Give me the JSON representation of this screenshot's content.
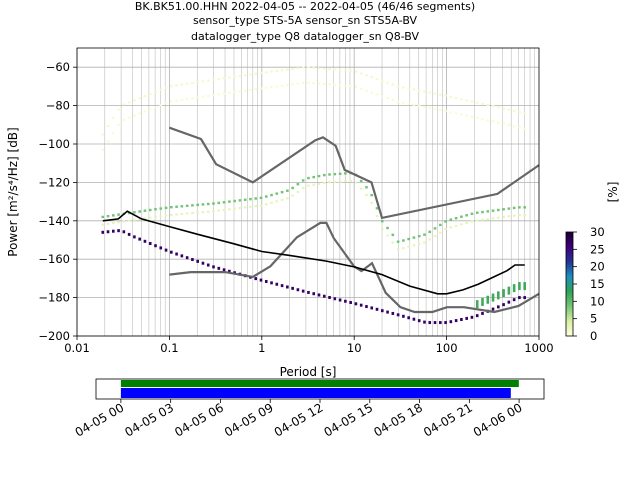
{
  "title_lines": [
    "BK.BK51.00.HHN   2022-04-05 -- 2022-04-05  (46/46 segments)",
    "sensor_type STS-5A sensor_sn STS5A-BV",
    "datalogger_type Q8 datalogger_sn Q8-BV"
  ],
  "colors": {
    "noise_model": "#666666",
    "mode_line": "#000000",
    "coverage_data": "#008000",
    "coverage_psd": "#0000ff"
  },
  "chart_data": [
    {
      "type": "heatmap",
      "name": "ppsd",
      "xlabel": "Period [s]",
      "ylabel": "Power [m²/s⁴/Hz] [dB]",
      "xscale": "log",
      "xlim": [
        0.01,
        1000
      ],
      "ylim": [
        -200,
        -50
      ],
      "xticks": [
        0.01,
        0.1,
        1,
        10,
        100,
        1000
      ],
      "xtick_labels": [
        "0.01",
        "0.1",
        "1",
        "10",
        "100",
        "1000"
      ],
      "yticks": [
        -200,
        -180,
        -160,
        -140,
        -120,
        -100,
        -80,
        -60
      ],
      "ytick_labels": [
        "−200",
        "−180",
        "−160",
        "−140",
        "−120",
        "−100",
        "−80",
        "−60"
      ],
      "grid": true,
      "colorbar": {
        "label": "[%]",
        "range": [
          0,
          30
        ],
        "ticks": [
          0,
          5,
          10,
          15,
          20,
          25,
          30
        ],
        "tick_labels": [
          "0",
          "5",
          "10",
          "15",
          "20",
          "25",
          "30"
        ],
        "colormap": [
          "#ffffe0",
          "#d9f0a3",
          "#78c679",
          "#31a354",
          "#1d91c0",
          "#253494",
          "#3f007d",
          "#1a0030"
        ]
      },
      "high_noise_model": [
        [
          0.1,
          -91.5
        ],
        [
          0.22,
          -97.4
        ],
        [
          0.32,
          -110.5
        ],
        [
          0.8,
          -120
        ],
        [
          3.8,
          -98
        ],
        [
          4.6,
          -96.5
        ],
        [
          6.3,
          -101
        ],
        [
          7.9,
          -113.5
        ],
        [
          15.4,
          -120
        ],
        [
          20,
          -138.5
        ],
        [
          354.8,
          -126
        ],
        [
          1000,
          -111
        ]
      ],
      "low_noise_model": [
        [
          0.1,
          -168
        ],
        [
          0.17,
          -166.7
        ],
        [
          0.4,
          -166.7
        ],
        [
          0.8,
          -169.2
        ],
        [
          1.24,
          -163.7
        ],
        [
          2.4,
          -148.6
        ],
        [
          4.3,
          -141.1
        ],
        [
          5,
          -141.1
        ],
        [
          6,
          -149
        ],
        [
          10,
          -163.8
        ],
        [
          12,
          -166.2
        ],
        [
          15.6,
          -162.1
        ],
        [
          21.9,
          -177.5
        ],
        [
          31.6,
          -185
        ],
        [
          45,
          -187.5
        ],
        [
          70,
          -187.5
        ],
        [
          101,
          -185
        ],
        [
          154,
          -185
        ],
        [
          328,
          -187.5
        ],
        [
          600,
          -184.4
        ],
        [
          1000,
          -178
        ]
      ],
      "mode_line": [
        [
          0.019,
          -140
        ],
        [
          0.028,
          -139
        ],
        [
          0.035,
          -135
        ],
        [
          0.05,
          -139
        ],
        [
          0.1,
          -143
        ],
        [
          0.2,
          -147
        ],
        [
          0.5,
          -152
        ],
        [
          1,
          -156
        ],
        [
          2,
          -158
        ],
        [
          5,
          -161
        ],
        [
          10,
          -164
        ],
        [
          20,
          -168
        ],
        [
          40,
          -174
        ],
        [
          80,
          -178
        ],
        [
          100,
          -178
        ],
        [
          150,
          -176
        ],
        [
          220,
          -173
        ],
        [
          300,
          -170
        ],
        [
          450,
          -166
        ],
        [
          550,
          -163
        ],
        [
          700,
          -163
        ]
      ],
      "high_density_band": [
        [
          0.019,
          -146
        ],
        [
          0.03,
          -145
        ],
        [
          0.04,
          -148
        ],
        [
          0.1,
          -156
        ],
        [
          0.3,
          -164
        ],
        [
          1,
          -171
        ],
        [
          3,
          -177
        ],
        [
          10,
          -183
        ],
        [
          30,
          -189
        ],
        [
          60,
          -193
        ],
        [
          100,
          -193
        ],
        [
          200,
          -190
        ],
        [
          400,
          -184
        ],
        [
          600,
          -180
        ]
      ],
      "psd_spread_upper": [
        [
          0.019,
          -138
        ],
        [
          0.05,
          -135
        ],
        [
          0.1,
          -133
        ],
        [
          0.3,
          -131
        ],
        [
          1,
          -128
        ],
        [
          2,
          -124
        ],
        [
          3,
          -118
        ],
        [
          5,
          -116
        ],
        [
          10,
          -115
        ],
        [
          15,
          -125
        ],
        [
          20,
          -140
        ],
        [
          30,
          -151
        ],
        [
          60,
          -147
        ],
        [
          100,
          -140
        ],
        [
          200,
          -136
        ],
        [
          600,
          -133
        ]
      ],
      "outlier_band": [
        [
          0.019,
          -95
        ],
        [
          0.03,
          -80
        ],
        [
          0.1,
          -70
        ],
        [
          0.5,
          -65
        ],
        [
          1,
          -63
        ],
        [
          3,
          -60
        ],
        [
          10,
          -62
        ],
        [
          30,
          -70
        ],
        [
          100,
          -75
        ],
        [
          300,
          -80
        ],
        [
          700,
          -84
        ]
      ]
    },
    {
      "type": "timeline",
      "name": "coverage",
      "x_range": [
        "2022-04-04 22:30",
        "2022-04-06 01:30"
      ],
      "xtick_labels": [
        "04-05 00",
        "04-05 03",
        "04-05 06",
        "04-05 09",
        "04-05 12",
        "04-05 15",
        "04-05 18",
        "04-05 21",
        "04-06 00"
      ],
      "data_span": [
        "2022-04-05 00:00",
        "2022-04-05 23:59"
      ],
      "psd_span": [
        "2022-04-05 00:00",
        "2022-04-05 23:30"
      ]
    }
  ]
}
